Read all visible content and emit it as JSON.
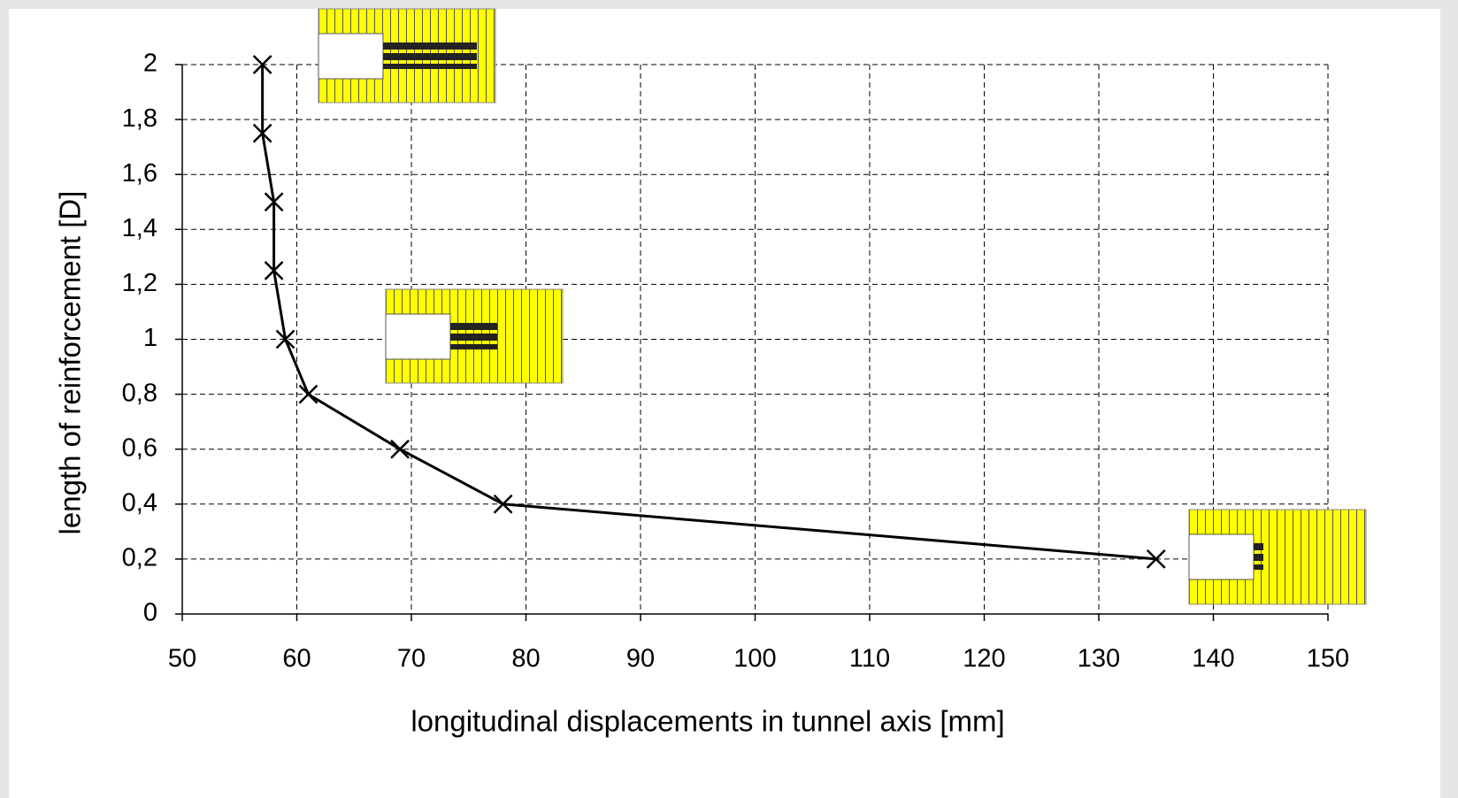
{
  "chart_data": {
    "type": "line",
    "x_label": "longitudinal displacements in tunnel axis [mm]",
    "y_label": "length of reinforcement [D]",
    "series": [
      {
        "color": "#000000",
        "x": [
          57,
          57,
          58,
          58,
          59,
          61,
          69,
          78,
          135
        ],
        "values": [
          2,
          1.75,
          1.5,
          1.25,
          1,
          0.8,
          0.6,
          0.4,
          0.2
        ]
      }
    ],
    "xlim": [
      50,
      150
    ],
    "xticks": [
      50,
      60,
      70,
      80,
      90,
      100,
      110,
      120,
      130,
      140,
      150
    ],
    "ylim": [
      0,
      2
    ],
    "yticks": [
      0,
      {
        "value": 0.2,
        "label": "0,2"
      },
      {
        "value": 0.4,
        "label": "0,4"
      },
      {
        "value": 0.6,
        "label": "0,6"
      },
      {
        "value": 0.8,
        "label": "0,8"
      },
      1,
      {
        "value": 1.2,
        "label": "1,2"
      },
      {
        "value": 1.4,
        "label": "1,4"
      },
      {
        "value": 1.6,
        "label": "1,6"
      },
      {
        "value": 1.8,
        "label": "1,8"
      },
      2
    ],
    "grid": true
  }
}
